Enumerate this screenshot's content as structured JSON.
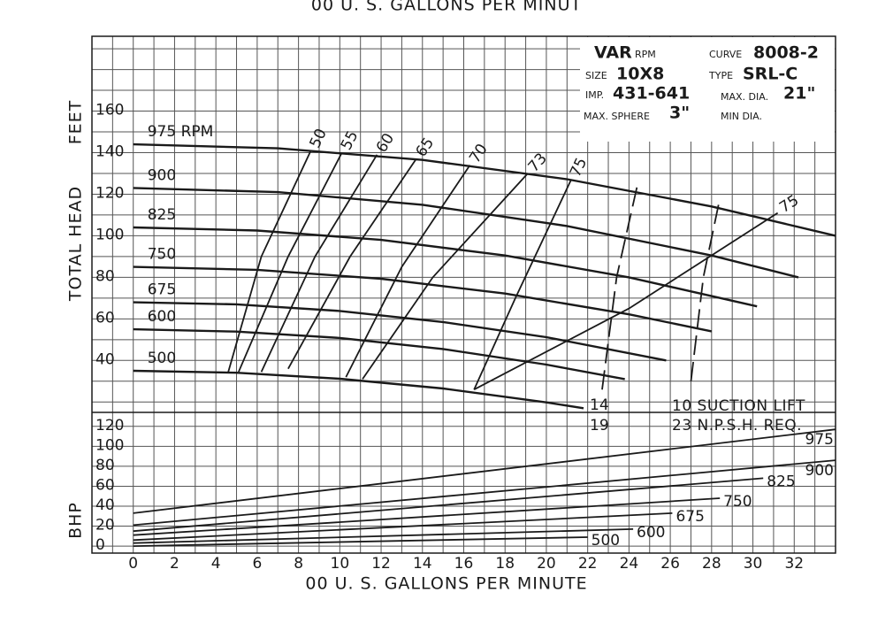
{
  "chart_data": {
    "type": "line",
    "top_label": "00 U. S. GALLONS PER MINUT",
    "xlabel": "00 U. S. GALLONS PER MINUTE",
    "ylabel": "TOTAL HEAD",
    "ylabel_unit": "FEET",
    "y2label": "BHP",
    "xlim": [
      -2,
      34
    ],
    "xticks": [
      0,
      2,
      4,
      6,
      8,
      10,
      12,
      14,
      16,
      18,
      20,
      22,
      24,
      26,
      28,
      30,
      32
    ],
    "ylim": [
      15,
      196
    ],
    "yticks": [
      40,
      60,
      80,
      100,
      120,
      140,
      160
    ],
    "y2lim": [
      -7,
      134
    ],
    "y2ticks": [
      0,
      20,
      40,
      60,
      80,
      100,
      120
    ],
    "grid": true,
    "xminor_grid": true,
    "yminor_grid": true,
    "color": "#1a1a1a",
    "grid_color": "#555555",
    "series": [
      {
        "name": "975 RPM",
        "kind": "head",
        "x": [
          0,
          7,
          14,
          21,
          28,
          34
        ],
        "values": [
          144,
          142.1,
          136.5,
          127.2,
          114.1,
          100
        ]
      },
      {
        "name": "900",
        "kind": "head",
        "x": [
          0,
          7,
          14,
          21,
          28,
          32.2
        ],
        "values": [
          123,
          121,
          114.9,
          104.7,
          90.5,
          80
        ]
      },
      {
        "name": "825",
        "kind": "head",
        "x": [
          0,
          6,
          12,
          18,
          24,
          30.2
        ],
        "values": [
          104,
          102.5,
          98,
          90.5,
          80,
          66
        ]
      },
      {
        "name": "750",
        "kind": "head",
        "x": [
          0,
          6,
          12,
          18,
          24,
          28
        ],
        "values": [
          85,
          83.6,
          79.3,
          72.2,
          62.2,
          54
        ]
      },
      {
        "name": "675",
        "kind": "head",
        "x": [
          0,
          5,
          10,
          15,
          20,
          25.8
        ],
        "values": [
          68,
          67,
          63.8,
          58.5,
          51.2,
          40
        ]
      },
      {
        "name": "600",
        "kind": "head",
        "x": [
          0,
          5,
          10,
          15,
          20,
          23.8
        ],
        "values": [
          55,
          53.9,
          50.8,
          45.5,
          38,
          31
        ]
      },
      {
        "name": "500",
        "kind": "head",
        "x": [
          0,
          5,
          10,
          15,
          20,
          21.8
        ],
        "values": [
          35,
          34.1,
          31.2,
          26.5,
          19.8,
          17
        ]
      },
      {
        "name": "50",
        "kind": "efficiency",
        "x": [
          4.6,
          6.2,
          8.6
        ],
        "values": [
          34.5,
          90,
          141
        ]
      },
      {
        "name": "55",
        "kind": "efficiency",
        "x": [
          5.1,
          7.5,
          10.1
        ],
        "values": [
          34.5,
          90,
          140
        ]
      },
      {
        "name": "60",
        "kind": "efficiency",
        "x": [
          6.2,
          8.8,
          11.8
        ],
        "values": [
          34.5,
          90,
          139
        ]
      },
      {
        "name": "65",
        "kind": "efficiency",
        "x": [
          7.5,
          10.5,
          13.7
        ],
        "values": [
          36,
          90,
          137
        ]
      },
      {
        "name": "70",
        "kind": "efficiency",
        "x": [
          10.3,
          13,
          16.3
        ],
        "values": [
          32,
          85,
          134
        ]
      },
      {
        "name": "73",
        "kind": "efficiency",
        "x": [
          11.1,
          14.5,
          19.1
        ],
        "values": [
          31,
          80,
          130
        ]
      },
      {
        "name": "75",
        "kind": "efficiency",
        "x": [
          16.5,
          18.5,
          21.2
        ],
        "values": [
          26,
          70,
          127
        ]
      },
      {
        "name": "75",
        "kind": "efficiency",
        "x": [
          16.5,
          24,
          31.2
        ],
        "values": [
          26,
          65,
          111
        ]
      },
      {
        "name": "14",
        "kind": "npsh",
        "dash": true,
        "x": [
          22.7,
          23.4,
          24.4
        ],
        "values": [
          26,
          80,
          124
        ]
      },
      {
        "name": "19",
        "kind": "npsh",
        "dash": true,
        "x": [
          27,
          27.6,
          28.4
        ],
        "values": [
          30,
          80,
          118
        ]
      },
      {
        "name": "975",
        "kind": "bhp",
        "axis": "y2",
        "x": [
          0,
          34
        ],
        "values": [
          33,
          117
        ]
      },
      {
        "name": "900",
        "kind": "bhp",
        "axis": "y2",
        "x": [
          0,
          34
        ],
        "values": [
          21,
          86
        ]
      },
      {
        "name": "825",
        "kind": "bhp",
        "axis": "y2",
        "x": [
          0,
          30.5
        ],
        "values": [
          15,
          68
        ]
      },
      {
        "name": "750",
        "kind": "bhp",
        "axis": "y2",
        "x": [
          0,
          28.4
        ],
        "values": [
          11,
          48
        ]
      },
      {
        "name": "675",
        "kind": "bhp",
        "axis": "y2",
        "x": [
          0,
          26.1
        ],
        "values": [
          6,
          33
        ]
      },
      {
        "name": "600",
        "kind": "bhp",
        "axis": "y2",
        "x": [
          0,
          24.2
        ],
        "values": [
          3,
          17
        ]
      },
      {
        "name": "500",
        "kind": "bhp",
        "axis": "y2",
        "x": [
          0,
          22
        ],
        "values": [
          0,
          9
        ]
      }
    ],
    "annotations": [
      {
        "text": "10 SUCTION LIFT"
      },
      {
        "text": "23 N.P.S.H. REQ."
      }
    ],
    "info": {
      "rpm": "VAR",
      "rpm_unit": "RPM",
      "curve_label": "CURVE",
      "curve": "8008-2",
      "size_label": "SIZE",
      "size": "10X8",
      "type_label": "TYPE",
      "type": "SRL-C",
      "imp_label": "IMP.",
      "imp": "431-641",
      "max_dia_label": "MAX. DIA.",
      "max_dia": "21\"",
      "max_sphere_label": "MAX. SPHERE",
      "max_sphere": "3\"",
      "min_dia_label": "MIN DIA."
    }
  }
}
